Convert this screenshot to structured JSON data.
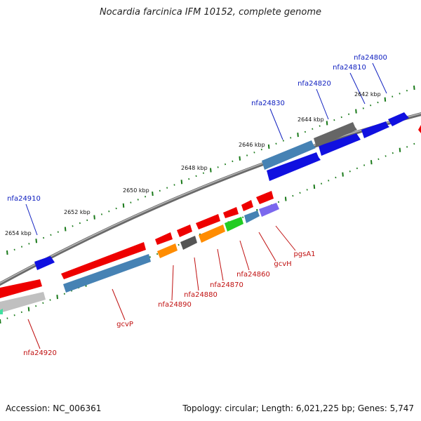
{
  "title": "Nocardia farcinica IFM 10152, complete genome",
  "footer": {
    "accession": "Accession: NC_006361",
    "summary": "Topology: circular; Length: 6,021,225 bp; Genes: 5,747"
  },
  "colors": {
    "backbone": "#8a8a8a",
    "tick_dot": "#1a7a1a",
    "fwd_label": "#1020c0",
    "rev_label": "#c01010"
  },
  "scale_ticks": [
    {
      "label": "2642 kbp"
    },
    {
      "label": "2644 kbp"
    },
    {
      "label": "2646 kbp"
    },
    {
      "label": "2648 kbp"
    },
    {
      "label": "2650 kbp"
    },
    {
      "label": "2652 kbp"
    },
    {
      "label": "2654 kbp"
    }
  ],
  "gene_labels": [
    {
      "text": "nfa24800",
      "strand": "forward"
    },
    {
      "text": "nfa24810",
      "strand": "forward"
    },
    {
      "text": "nfa24820",
      "strand": "forward"
    },
    {
      "text": "nfa24830",
      "strand": "forward"
    },
    {
      "text": "nfa24910",
      "strand": "forward"
    },
    {
      "text": "pgsA1",
      "strand": "reverse"
    },
    {
      "text": "gcvH",
      "strand": "reverse"
    },
    {
      "text": "nfa24860",
      "strand": "reverse"
    },
    {
      "text": "nfa24870",
      "strand": "reverse"
    },
    {
      "text": "nfa24880",
      "strand": "reverse"
    },
    {
      "text": "nfa24890",
      "strand": "reverse"
    },
    {
      "text": "gcvP",
      "strand": "reverse"
    },
    {
      "text": "nfa24920",
      "strand": "reverse"
    }
  ]
}
